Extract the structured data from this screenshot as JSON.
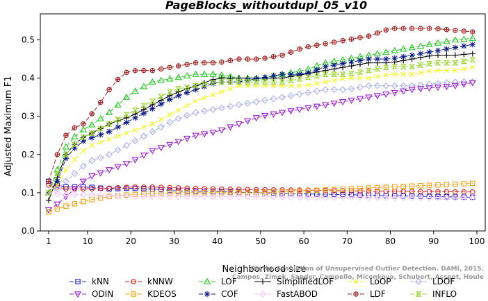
{
  "chart_data": {
    "type": "line",
    "title": "PageBlocks_withoutdupl_05_v10",
    "xlabel": "Neighborhood size",
    "ylabel": "Adjusted Maximum F1",
    "xlim": [
      1,
      100
    ],
    "ylim": [
      0.0,
      0.55
    ],
    "x_ticks": [
      "1",
      "10",
      "20",
      "30",
      "40",
      "50",
      "60",
      "70",
      "80",
      "90",
      "100"
    ],
    "y_ticks": [
      "0.0",
      "0.1",
      "0.2",
      "0.3",
      "0.4",
      "0.5"
    ],
    "grid": false,
    "legend_position": "bottom",
    "watermark": [
      "Campos, Zimek, Sander, Campello, Micenkova, Schubert, Assent, Houle",
      "On the Evaluation of Unsupervised Outlier Detection. DAMI, 2015."
    ],
    "series": [
      {
        "name": "kNN",
        "color": "#1f1fd6",
        "marker": "square",
        "dash": "6,3",
        "points": [
          [
            1,
            0.13
          ],
          [
            3,
            0.12
          ],
          [
            5,
            0.115
          ],
          [
            10,
            0.115
          ],
          [
            15,
            0.11
          ],
          [
            20,
            0.112
          ],
          [
            25,
            0.11
          ],
          [
            30,
            0.105
          ],
          [
            40,
            0.103
          ],
          [
            50,
            0.1
          ],
          [
            60,
            0.097
          ],
          [
            70,
            0.095
          ],
          [
            80,
            0.092
          ],
          [
            90,
            0.09
          ],
          [
            100,
            0.088
          ]
        ]
      },
      {
        "name": "kNNW",
        "color": "#e01f1f",
        "marker": "circle",
        "dash": "6,3",
        "points": [
          [
            1,
            0.12
          ],
          [
            3,
            0.115
          ],
          [
            5,
            0.11
          ],
          [
            10,
            0.11
          ],
          [
            15,
            0.112
          ],
          [
            20,
            0.115
          ],
          [
            25,
            0.115
          ],
          [
            30,
            0.113
          ],
          [
            40,
            0.11
          ],
          [
            50,
            0.108
          ],
          [
            60,
            0.107
          ],
          [
            70,
            0.105
          ],
          [
            80,
            0.104
          ],
          [
            90,
            0.103
          ],
          [
            100,
            0.102
          ]
        ]
      },
      {
        "name": "LOF",
        "color": "#22cc22",
        "marker": "triangle-up",
        "dash": "6,3",
        "points": [
          [
            1,
            0.1
          ],
          [
            3,
            0.16
          ],
          [
            5,
            0.22
          ],
          [
            8,
            0.26
          ],
          [
            10,
            0.27
          ],
          [
            15,
            0.31
          ],
          [
            20,
            0.36
          ],
          [
            25,
            0.39
          ],
          [
            30,
            0.4
          ],
          [
            35,
            0.41
          ],
          [
            40,
            0.41
          ],
          [
            45,
            0.4
          ],
          [
            50,
            0.4
          ],
          [
            55,
            0.41
          ],
          [
            60,
            0.42
          ],
          [
            65,
            0.44
          ],
          [
            70,
            0.45
          ],
          [
            75,
            0.46
          ],
          [
            80,
            0.47
          ],
          [
            85,
            0.48
          ],
          [
            90,
            0.49
          ],
          [
            95,
            0.5
          ],
          [
            100,
            0.505
          ]
        ]
      },
      {
        "name": "SimplifiedLOF",
        "color": "#000000",
        "marker": "plus",
        "dash": "none",
        "points": [
          [
            1,
            0.08
          ],
          [
            3,
            0.14
          ],
          [
            5,
            0.2
          ],
          [
            8,
            0.24
          ],
          [
            10,
            0.25
          ],
          [
            15,
            0.28
          ],
          [
            20,
            0.3
          ],
          [
            25,
            0.33
          ],
          [
            30,
            0.36
          ],
          [
            35,
            0.38
          ],
          [
            40,
            0.4
          ],
          [
            45,
            0.4
          ],
          [
            50,
            0.4
          ],
          [
            55,
            0.4
          ],
          [
            60,
            0.41
          ],
          [
            65,
            0.42
          ],
          [
            70,
            0.43
          ],
          [
            75,
            0.44
          ],
          [
            80,
            0.44
          ],
          [
            85,
            0.45
          ],
          [
            90,
            0.46
          ],
          [
            95,
            0.46
          ],
          [
            100,
            0.465
          ]
        ]
      },
      {
        "name": "LoOP",
        "color": "#f5f51a",
        "marker": "x",
        "dash": "6,3",
        "points": [
          [
            1,
            0.1
          ],
          [
            3,
            0.12
          ],
          [
            5,
            0.16
          ],
          [
            8,
            0.2
          ],
          [
            10,
            0.22
          ],
          [
            15,
            0.24
          ],
          [
            20,
            0.26
          ],
          [
            25,
            0.28
          ],
          [
            30,
            0.31
          ],
          [
            35,
            0.34
          ],
          [
            40,
            0.36
          ],
          [
            45,
            0.38
          ],
          [
            50,
            0.38
          ],
          [
            55,
            0.38
          ],
          [
            60,
            0.38
          ],
          [
            65,
            0.39
          ],
          [
            70,
            0.4
          ],
          [
            75,
            0.4
          ],
          [
            80,
            0.41
          ],
          [
            85,
            0.41
          ],
          [
            90,
            0.42
          ],
          [
            95,
            0.42
          ],
          [
            100,
            0.43
          ]
        ]
      },
      {
        "name": "LDOF",
        "color": "#b0b0ec",
        "marker": "diamond",
        "dash": "6,3",
        "points": [
          [
            1,
            0.1
          ],
          [
            3,
            0.11
          ],
          [
            5,
            0.13
          ],
          [
            8,
            0.16
          ],
          [
            10,
            0.18
          ],
          [
            15,
            0.2
          ],
          [
            20,
            0.23
          ],
          [
            25,
            0.26
          ],
          [
            30,
            0.29
          ],
          [
            35,
            0.31
          ],
          [
            40,
            0.32
          ],
          [
            45,
            0.33
          ],
          [
            50,
            0.34
          ],
          [
            55,
            0.35
          ],
          [
            60,
            0.36
          ],
          [
            65,
            0.37
          ],
          [
            70,
            0.37
          ],
          [
            75,
            0.38
          ],
          [
            80,
            0.38
          ],
          [
            85,
            0.38
          ],
          [
            90,
            0.385
          ],
          [
            95,
            0.39
          ],
          [
            100,
            0.39
          ]
        ]
      },
      {
        "name": "ODIN",
        "color": "#9b1fd6",
        "marker": "triangle-down",
        "dash": "6,3",
        "points": [
          [
            1,
            0.055
          ],
          [
            3,
            0.07
          ],
          [
            5,
            0.09
          ],
          [
            8,
            0.12
          ],
          [
            10,
            0.14
          ],
          [
            15,
            0.16
          ],
          [
            20,
            0.18
          ],
          [
            25,
            0.21
          ],
          [
            30,
            0.23
          ],
          [
            35,
            0.25
          ],
          [
            40,
            0.26
          ],
          [
            45,
            0.28
          ],
          [
            50,
            0.3
          ],
          [
            55,
            0.31
          ],
          [
            60,
            0.32
          ],
          [
            65,
            0.33
          ],
          [
            70,
            0.34
          ],
          [
            75,
            0.35
          ],
          [
            80,
            0.36
          ],
          [
            85,
            0.37
          ],
          [
            90,
            0.375
          ],
          [
            95,
            0.38
          ],
          [
            100,
            0.39
          ]
        ]
      },
      {
        "name": "KDEOS",
        "color": "#f0a010",
        "marker": "square",
        "dash": "6,3",
        "points": [
          [
            1,
            0.05
          ],
          [
            5,
            0.065
          ],
          [
            10,
            0.08
          ],
          [
            15,
            0.09
          ],
          [
            20,
            0.095
          ],
          [
            30,
            0.1
          ],
          [
            40,
            0.1
          ],
          [
            50,
            0.1
          ],
          [
            60,
            0.105
          ],
          [
            70,
            0.11
          ],
          [
            80,
            0.115
          ],
          [
            90,
            0.12
          ],
          [
            100,
            0.125
          ]
        ]
      },
      {
        "name": "COF",
        "color": "#0c1a8a",
        "marker": "star",
        "dash": "6,3",
        "points": [
          [
            1,
            0.1
          ],
          [
            3,
            0.13
          ],
          [
            5,
            0.19
          ],
          [
            8,
            0.23
          ],
          [
            10,
            0.24
          ],
          [
            15,
            0.26
          ],
          [
            20,
            0.29
          ],
          [
            25,
            0.32
          ],
          [
            30,
            0.35
          ],
          [
            35,
            0.37
          ],
          [
            40,
            0.39
          ],
          [
            45,
            0.39
          ],
          [
            50,
            0.4
          ],
          [
            55,
            0.41
          ],
          [
            60,
            0.41
          ],
          [
            65,
            0.43
          ],
          [
            70,
            0.44
          ],
          [
            75,
            0.45
          ],
          [
            80,
            0.45
          ],
          [
            85,
            0.46
          ],
          [
            90,
            0.47
          ],
          [
            95,
            0.48
          ],
          [
            100,
            0.49
          ]
        ]
      },
      {
        "name": "FastABOD",
        "color": "#f7c6f7",
        "marker": "diamond",
        "dash": "6,3",
        "points": [
          [
            1,
            0.1
          ],
          [
            5,
            0.095
          ],
          [
            10,
            0.095
          ],
          [
            20,
            0.09
          ],
          [
            30,
            0.09
          ],
          [
            40,
            0.09
          ],
          [
            50,
            0.09
          ],
          [
            60,
            0.088
          ],
          [
            70,
            0.088
          ],
          [
            80,
            0.087
          ],
          [
            90,
            0.087
          ],
          [
            100,
            0.087
          ]
        ]
      },
      {
        "name": "LDF",
        "color": "#a01f1f",
        "marker": "circle-plus",
        "dash": "6,3",
        "points": [
          [
            1,
            0.13
          ],
          [
            3,
            0.2
          ],
          [
            5,
            0.25
          ],
          [
            7,
            0.27
          ],
          [
            9,
            0.28
          ],
          [
            12,
            0.32
          ],
          [
            15,
            0.37
          ],
          [
            18,
            0.41
          ],
          [
            20,
            0.42
          ],
          [
            25,
            0.42
          ],
          [
            30,
            0.43
          ],
          [
            35,
            0.44
          ],
          [
            40,
            0.44
          ],
          [
            45,
            0.45
          ],
          [
            50,
            0.45
          ],
          [
            55,
            0.46
          ],
          [
            60,
            0.48
          ],
          [
            65,
            0.49
          ],
          [
            70,
            0.5
          ],
          [
            75,
            0.51
          ],
          [
            80,
            0.53
          ],
          [
            85,
            0.53
          ],
          [
            90,
            0.53
          ],
          [
            95,
            0.525
          ],
          [
            100,
            0.52
          ]
        ]
      },
      {
        "name": "INFLO",
        "color": "#9ad630",
        "marker": "hourglass",
        "dash": "6,3",
        "points": [
          [
            1,
            0.1
          ],
          [
            3,
            0.15
          ],
          [
            5,
            0.2
          ],
          [
            8,
            0.24
          ],
          [
            10,
            0.25
          ],
          [
            15,
            0.28
          ],
          [
            20,
            0.31
          ],
          [
            25,
            0.34
          ],
          [
            30,
            0.37
          ],
          [
            35,
            0.38
          ],
          [
            40,
            0.39
          ],
          [
            45,
            0.39
          ],
          [
            50,
            0.39
          ],
          [
            55,
            0.39
          ],
          [
            60,
            0.4
          ],
          [
            65,
            0.41
          ],
          [
            70,
            0.41
          ],
          [
            75,
            0.42
          ],
          [
            80,
            0.43
          ],
          [
            85,
            0.43
          ],
          [
            90,
            0.44
          ],
          [
            95,
            0.44
          ],
          [
            100,
            0.45
          ]
        ]
      }
    ]
  }
}
